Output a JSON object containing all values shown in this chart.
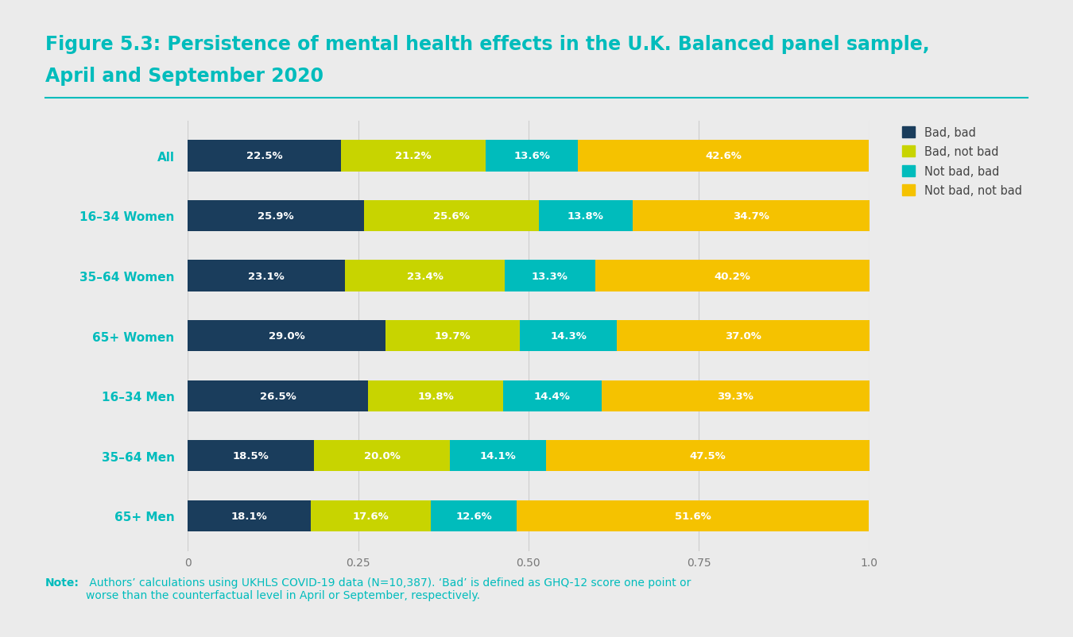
{
  "title_line1": "Figure 5.3: Persistence of mental health effects in the U.K. Balanced panel sample,",
  "title_line2": "April and September 2020",
  "title_color": "#00BCBC",
  "background_color": "#ebebeb",
  "chart_bg_color": "#ebebeb",
  "categories": [
    "All",
    "16–34 Women",
    "35–64 Women",
    "65+ Women",
    "16–34 Men",
    "35–64 Men",
    "65+ Men"
  ],
  "series": [
    {
      "label": "Bad, bad",
      "color": "#1a3d5c",
      "values": [
        0.225,
        0.259,
        0.231,
        0.29,
        0.265,
        0.185,
        0.181
      ],
      "labels": [
        "22.5%",
        "25.9%",
        "23.1%",
        "29.0%",
        "26.5%",
        "18.5%",
        "18.1%"
      ]
    },
    {
      "label": "Bad, not bad",
      "color": "#c8d400",
      "values": [
        0.212,
        0.256,
        0.234,
        0.197,
        0.198,
        0.2,
        0.176
      ],
      "labels": [
        "21.2%",
        "25.6%",
        "23.4%",
        "19.7%",
        "19.8%",
        "20.0%",
        "17.6%"
      ]
    },
    {
      "label": "Not bad, bad",
      "color": "#00BCBC",
      "values": [
        0.136,
        0.138,
        0.133,
        0.143,
        0.144,
        0.141,
        0.126
      ],
      "labels": [
        "13.6%",
        "13.8%",
        "13.3%",
        "14.3%",
        "14.4%",
        "14.1%",
        "12.6%"
      ]
    },
    {
      "label": "Not bad, not bad",
      "color": "#F5C200",
      "values": [
        0.426,
        0.347,
        0.402,
        0.37,
        0.393,
        0.475,
        0.516
      ],
      "labels": [
        "42.6%",
        "34.7%",
        "40.2%",
        "37.0%",
        "39.3%",
        "47.5%",
        "51.6%"
      ]
    }
  ],
  "xlim": [
    0,
    1.0
  ],
  "xticks": [
    0,
    0.25,
    0.5,
    0.75,
    1.0
  ],
  "xticklabels": [
    "0",
    "0.25",
    "0.50",
    "0.75",
    "1.0"
  ],
  "note_bold": "Note:",
  "note_rest": " Authors’ calculations using UKHLS COVID-19 data (N=10,387). ‘Bad’ is defined as GHQ-12 score one point or\nworse than the counterfactual level in April or September, respectively.",
  "note_color": "#00BCBC",
  "divider_color": "#00BCBC",
  "label_fontsize": 9.5,
  "category_fontsize": 11,
  "bar_height": 0.52,
  "title_fontsize": 17
}
